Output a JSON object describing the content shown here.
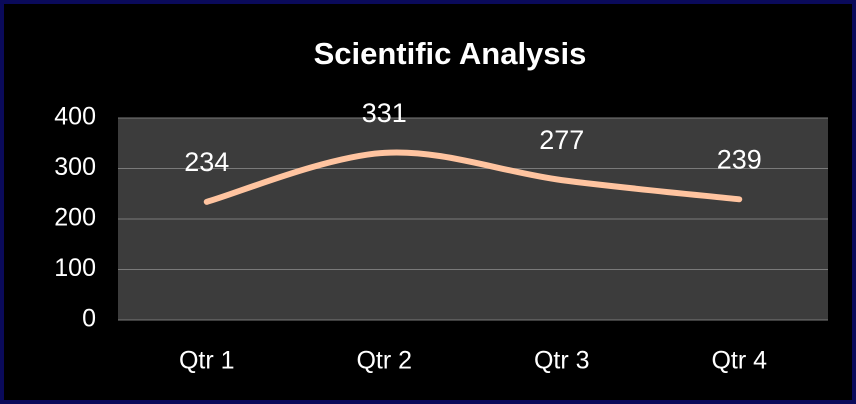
{
  "chart_data": {
    "type": "line",
    "title": "Scientific Analysis",
    "categories": [
      "Qtr 1",
      "Qtr 2",
      "Qtr 3",
      "Qtr 4"
    ],
    "values": [
      234,
      331,
      277,
      239
    ],
    "color": "#ffc4a0",
    "smooth": true,
    "ylim": [
      0,
      400
    ],
    "yticks": [
      0,
      100,
      200,
      300,
      400
    ],
    "grid": true
  }
}
